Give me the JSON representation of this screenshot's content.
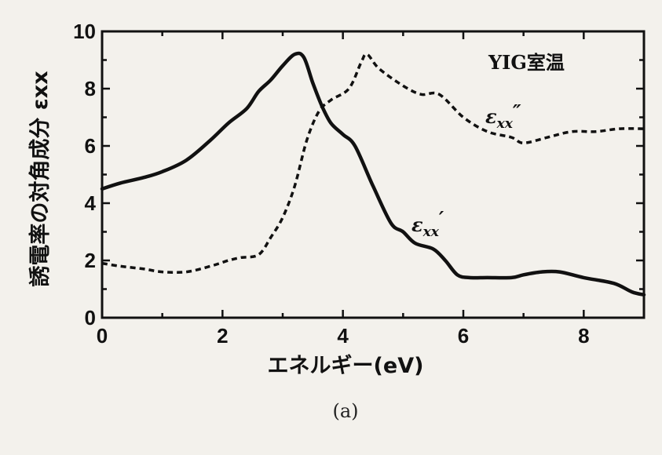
{
  "chart_data": {
    "type": "line",
    "title": "",
    "annotation": "YIG室温",
    "xlabel": "エネルギー(eV)",
    "ylabel": "誘電率の対角成分 εxx",
    "xlim": [
      0,
      9
    ],
    "ylim": [
      0,
      10
    ],
    "xticks": [
      "0",
      "2",
      "4",
      "6",
      "8"
    ],
    "yticks": [
      "0",
      "2",
      "4",
      "6",
      "8",
      "10"
    ],
    "grid": false,
    "legend": "inline labels",
    "series": [
      {
        "name": "εxx′",
        "style": "solid",
        "x": [
          0,
          0.3,
          0.7,
          1.0,
          1.4,
          1.8,
          2.1,
          2.4,
          2.6,
          2.8,
          3.0,
          3.2,
          3.35,
          3.5,
          3.65,
          3.8,
          4.0,
          4.2,
          4.5,
          4.8,
          5.0,
          5.2,
          5.5,
          5.7,
          5.9,
          6.1,
          6.4,
          6.8,
          7.0,
          7.3,
          7.6,
          8.0,
          8.5,
          8.8,
          9.0
        ],
        "y": [
          4.5,
          4.7,
          4.9,
          5.1,
          5.5,
          6.2,
          6.8,
          7.3,
          7.9,
          8.3,
          8.8,
          9.2,
          9.1,
          8.2,
          7.4,
          6.8,
          6.4,
          6.0,
          4.6,
          3.3,
          3.0,
          2.6,
          2.4,
          2.0,
          1.5,
          1.4,
          1.4,
          1.4,
          1.5,
          1.6,
          1.6,
          1.4,
          1.2,
          0.9,
          0.8
        ]
      },
      {
        "name": "εxx″",
        "style": "dashed",
        "x": [
          0,
          0.3,
          0.7,
          1.0,
          1.4,
          1.8,
          2.1,
          2.3,
          2.6,
          2.8,
          3.0,
          3.2,
          3.4,
          3.6,
          3.8,
          4.1,
          4.3,
          4.4,
          4.6,
          5.0,
          5.3,
          5.6,
          6.0,
          6.4,
          6.8,
          7.0,
          7.4,
          7.8,
          8.2,
          8.6,
          9.0
        ],
        "y": [
          1.9,
          1.8,
          1.7,
          1.6,
          1.6,
          1.8,
          2.0,
          2.1,
          2.2,
          2.8,
          3.5,
          4.6,
          6.2,
          7.2,
          7.6,
          8.0,
          8.9,
          9.2,
          8.7,
          8.1,
          7.8,
          7.8,
          7.0,
          6.5,
          6.3,
          6.1,
          6.3,
          6.5,
          6.5,
          6.6,
          6.6
        ]
      }
    ]
  },
  "series_labels": {
    "solid": {
      "base": "ε",
      "sub": "xx",
      "mark": "′"
    },
    "dashed": {
      "base": "ε",
      "sub": "xx",
      "mark": "″"
    }
  },
  "caption": "(a)"
}
